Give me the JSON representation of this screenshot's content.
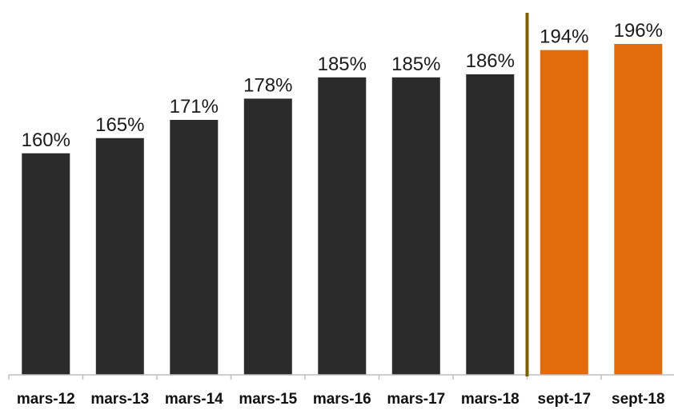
{
  "chart_data": {
    "type": "bar",
    "categories": [
      "mars-12",
      "mars-13",
      "mars-14",
      "mars-15",
      "mars-16",
      "mars-17",
      "mars-18",
      "sept-17",
      "sept-18"
    ],
    "values": [
      160,
      165,
      171,
      178,
      185,
      185,
      186,
      194,
      196
    ],
    "data_labels": [
      "160%",
      "165%",
      "171%",
      "178%",
      "185%",
      "185%",
      "186%",
      "194%",
      "196%"
    ],
    "bar_colors": [
      "#2b2b2b",
      "#2b2b2b",
      "#2b2b2b",
      "#2b2b2b",
      "#2b2b2b",
      "#2b2b2b",
      "#2b2b2b",
      "#e36c0a",
      "#e36c0a"
    ],
    "title": "",
    "xlabel": "",
    "ylabel": "",
    "y_axis_visible": false,
    "grid": false,
    "legend": "none",
    "separator_after_category": "mars-18",
    "separator_color": "#7f6000",
    "axis_color": "#bfbfbf"
  }
}
